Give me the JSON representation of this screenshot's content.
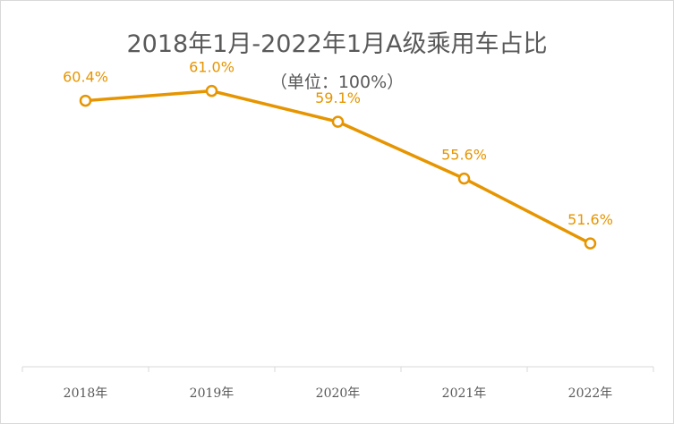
{
  "chart_data": {
    "type": "line",
    "title": "2018年1月-2022年1月A级乘用车占比",
    "subtitle": "（单位：100%）",
    "categories": [
      "2018年",
      "2019年",
      "2020年",
      "2021年",
      "2022年"
    ],
    "series": [
      {
        "values": [
          60.4,
          61.0,
          59.1,
          55.6,
          51.6
        ],
        "labels": [
          "60.4%",
          "61.0%",
          "59.1%",
          "55.6%",
          "51.6%"
        ],
        "color": "#e69500"
      }
    ],
    "ylim": [
      44,
      66
    ],
    "grid": false,
    "legend": "none",
    "axis_color": "#d9d9d9"
  }
}
